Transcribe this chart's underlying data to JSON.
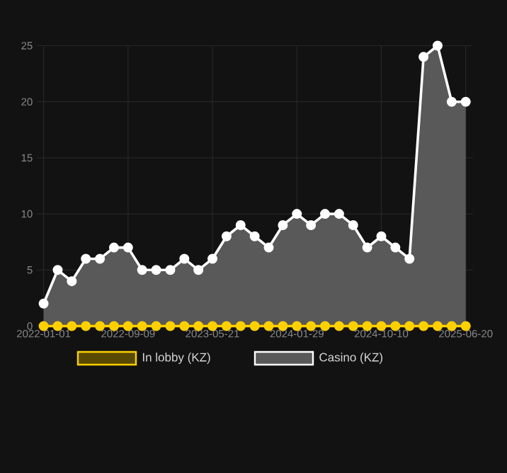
{
  "chart_data": {
    "type": "area",
    "categories": [
      "2022-01-01",
      null,
      null,
      null,
      null,
      null,
      "2022-09-09",
      null,
      null,
      null,
      null,
      null,
      "2023-05-21",
      null,
      null,
      null,
      null,
      null,
      "2024-01-29",
      null,
      null,
      null,
      null,
      null,
      "2024-10-10",
      null,
      null,
      null,
      null,
      null,
      "2025-06-20"
    ],
    "series": [
      {
        "name": "In lobby (KZ)",
        "type": "line",
        "color": "#ffd000",
        "values": [
          0,
          0,
          0,
          0,
          0,
          0,
          0,
          0,
          0,
          0,
          0,
          0,
          0,
          0,
          0,
          0,
          0,
          0,
          0,
          0,
          0,
          0,
          0,
          0,
          0,
          0,
          0,
          0,
          0,
          0,
          0
        ]
      },
      {
        "name": "Casino (KZ)",
        "color": "#ffffff",
        "values": [
          2,
          5,
          4,
          6,
          6,
          7,
          7,
          5,
          5,
          5,
          6,
          5,
          6,
          8,
          9,
          8,
          7,
          9,
          10,
          9,
          10,
          10,
          9,
          7,
          8,
          7,
          6,
          24,
          25,
          20,
          20
        ]
      }
    ],
    "ylim": [
      0,
      25
    ],
    "yticks": [
      0,
      5,
      10,
      15,
      20,
      25
    ],
    "grid": true,
    "legend": "bottom",
    "marker": "circle"
  }
}
